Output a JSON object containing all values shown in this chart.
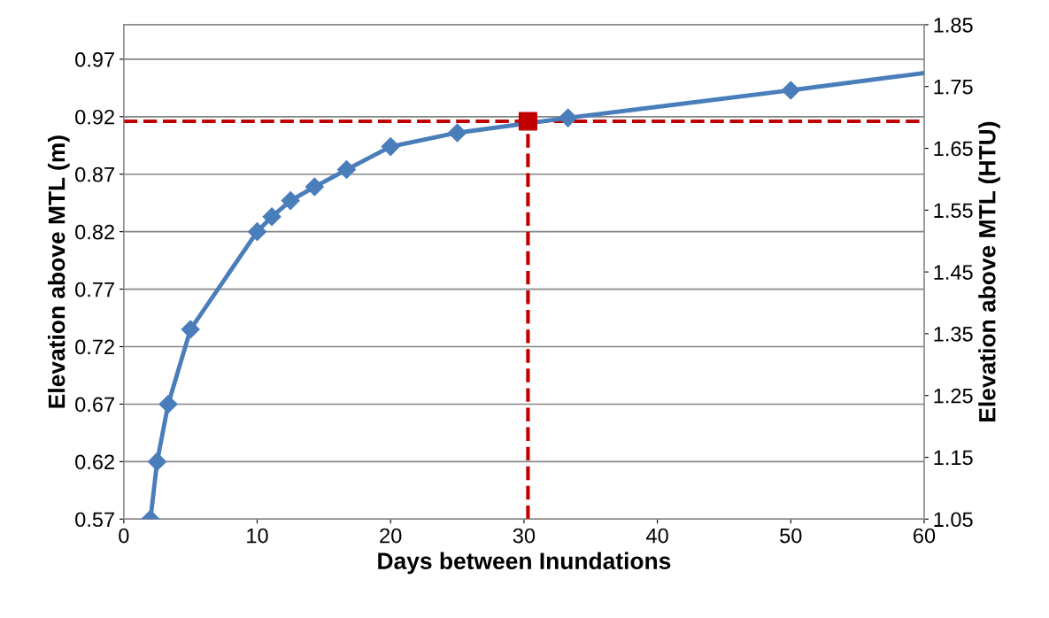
{
  "chart_data": {
    "type": "line",
    "xlabel": "Days between Inundations",
    "ylabel": "Elevation above MTL (m)",
    "y2label": "Elevation above MTL (HTU)",
    "xlim": [
      0,
      60
    ],
    "xticks": [
      0,
      10,
      20,
      30,
      40,
      50,
      60
    ],
    "ylim": [
      0.57,
      1.0
    ],
    "yticks": [
      0.57,
      0.62,
      0.67,
      0.72,
      0.77,
      0.82,
      0.87,
      0.92,
      0.97
    ],
    "y2lim": [
      1.05,
      1.85
    ],
    "y2ticks": [
      1.05,
      1.15,
      1.25,
      1.35,
      1.45,
      1.55,
      1.65,
      1.75,
      1.85
    ],
    "grid": "y",
    "legend": false,
    "series": [
      {
        "color": "#4a7ebb",
        "marker": "diamond",
        "line_style": "solid",
        "x": [
          2,
          2.5,
          3.33,
          5,
          10,
          11.1,
          12.5,
          14.3,
          16.7,
          20,
          25,
          33.3,
          50
        ],
        "values": [
          0.57,
          0.62,
          0.67,
          0.735,
          0.82,
          0.833,
          0.847,
          0.859,
          0.874,
          0.894,
          0.906,
          0.919,
          0.943
        ]
      },
      {
        "color": "#4a7ebb",
        "marker": "none",
        "line_style": "solid",
        "x": [
          50,
          60
        ],
        "values": [
          0.943,
          0.958
        ]
      },
      {
        "type": "scatter",
        "color": "#c00000",
        "marker": "square",
        "x": [
          30.3
        ],
        "values": [
          0.916
        ]
      }
    ],
    "ref_lines": [
      {
        "axis": "y",
        "value": 0.916,
        "color": "#c00000",
        "line_style": "dashed"
      },
      {
        "axis": "x",
        "value": 30.3,
        "color": "#c00000",
        "line_style": "dashed"
      }
    ]
  }
}
